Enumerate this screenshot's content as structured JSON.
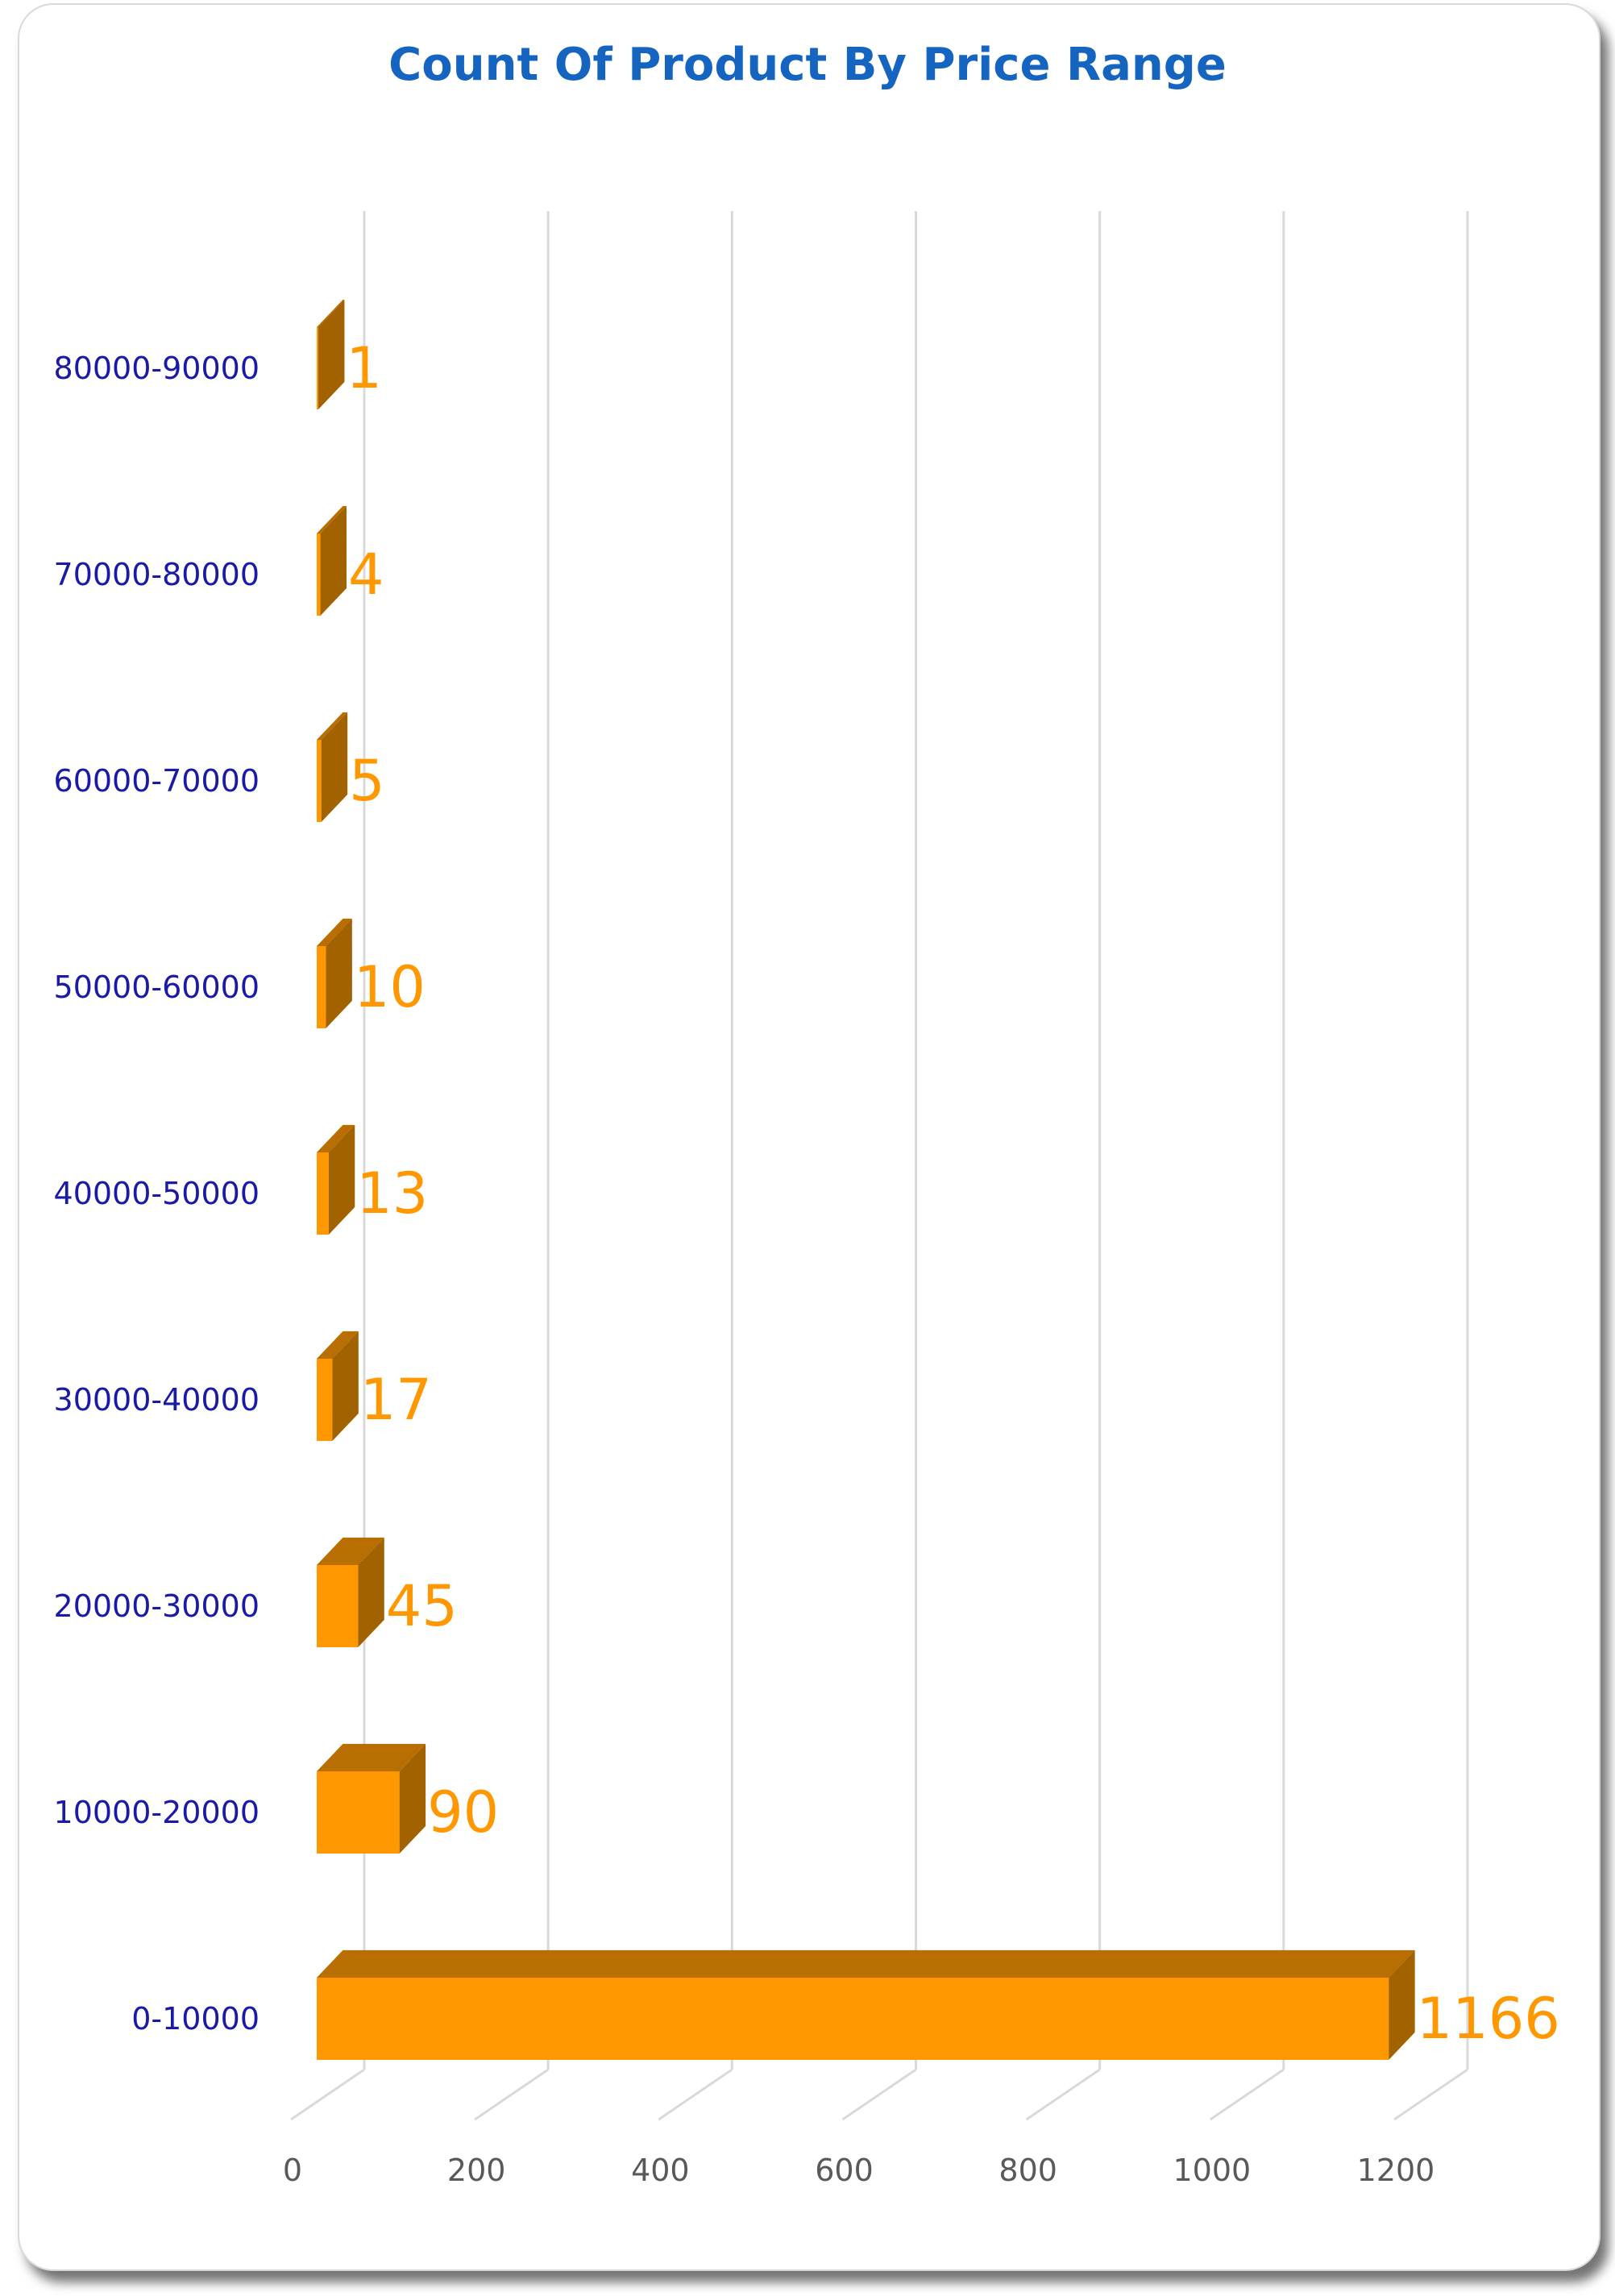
{
  "chart_data": {
    "type": "bar",
    "orientation": "horizontal",
    "title": "Count Of Product By Price Range",
    "categories": [
      "80000-90000",
      "70000-80000",
      "60000-70000",
      "50000-60000",
      "40000-50000",
      "30000-40000",
      "20000-30000",
      "10000-20000",
      "0-10000"
    ],
    "values": [
      1,
      4,
      5,
      10,
      13,
      17,
      45,
      90,
      1166
    ],
    "xlim": [
      0,
      1200
    ],
    "xticks": [
      0,
      200,
      400,
      600,
      800,
      1000,
      1200
    ],
    "grid": true,
    "data_labels": true,
    "colors": {
      "front": "#FF9800",
      "top": "#B86E00",
      "side": "#A36200",
      "title": "#1565C0",
      "category": "#1a1aa6",
      "tick": "#595959",
      "label": "#FF9800"
    }
  }
}
